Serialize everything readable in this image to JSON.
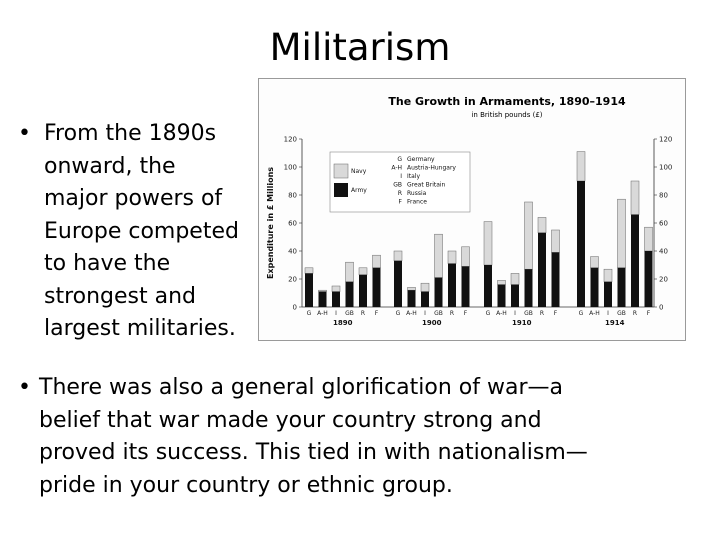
{
  "title": "Militarism",
  "bullets": [
    {
      "marker": "•",
      "lines": [
        "From the 1890s",
        "onward, the",
        "major powers of",
        "Europe competed",
        "to have the",
        "strongest and",
        "largest militaries."
      ]
    },
    {
      "marker": "•",
      "lines": [
        "There was also a general glorification of war—a",
        "belief that war made your country strong and",
        "proved its success. This tied in with nationalism—",
        "pride in your country or ethnic group."
      ]
    }
  ],
  "colors": {
    "army": "#111111",
    "navy": "#d9d9d9",
    "navy_stroke": "#666666",
    "axis": "#333333"
  },
  "chart_data": {
    "type": "bar",
    "stacked": true,
    "title": "The Growth in Armaments, 1890–1914",
    "subtitle": "in British pounds (£)",
    "ylabel": "Expenditure in £ Millions",
    "ylim": [
      0,
      120
    ],
    "yticks": [
      0,
      20,
      40,
      60,
      80,
      100,
      120
    ],
    "legend": {
      "series": [
        {
          "name": "Navy",
          "key": "navy"
        },
        {
          "name": "Army",
          "key": "army"
        }
      ],
      "countries": [
        {
          "code": "G",
          "name": "Germany"
        },
        {
          "code": "A-H",
          "name": "Austria-Hungary"
        },
        {
          "code": "I",
          "name": "Italy"
        },
        {
          "code": "GB",
          "name": "Great Britain"
        },
        {
          "code": "R",
          "name": "Russia"
        },
        {
          "code": "F",
          "name": "France"
        }
      ]
    },
    "groups": [
      {
        "year": "1890",
        "bars": [
          {
            "country": "G",
            "army": 24,
            "navy": 4
          },
          {
            "country": "A-H",
            "army": 11,
            "navy": 1
          },
          {
            "country": "I",
            "army": 11,
            "navy": 4
          },
          {
            "country": "GB",
            "army": 18,
            "navy": 14
          },
          {
            "country": "R",
            "army": 23,
            "navy": 5
          },
          {
            "country": "F",
            "army": 28,
            "navy": 9
          }
        ]
      },
      {
        "year": "1900",
        "bars": [
          {
            "country": "G",
            "army": 33,
            "navy": 7
          },
          {
            "country": "A-H",
            "army": 12,
            "navy": 2
          },
          {
            "country": "I",
            "army": 11,
            "navy": 6
          },
          {
            "country": "GB",
            "army": 21,
            "navy": 31
          },
          {
            "country": "R",
            "army": 31,
            "navy": 9
          },
          {
            "country": "F",
            "army": 29,
            "navy": 14
          }
        ]
      },
      {
        "year": "1910",
        "bars": [
          {
            "country": "G",
            "army": 30,
            "navy": 31
          },
          {
            "country": "A-H",
            "army": 16,
            "navy": 3
          },
          {
            "country": "I",
            "army": 16,
            "navy": 8
          },
          {
            "country": "GB",
            "army": 27,
            "navy": 48
          },
          {
            "country": "R",
            "army": 53,
            "navy": 11
          },
          {
            "country": "F",
            "army": 39,
            "navy": 16
          }
        ]
      },
      {
        "year": "1914",
        "bars": [
          {
            "country": "G",
            "army": 90,
            "navy": 21
          },
          {
            "country": "A-H",
            "army": 28,
            "navy": 8
          },
          {
            "country": "I",
            "army": 18,
            "navy": 9
          },
          {
            "country": "GB",
            "army": 28,
            "navy": 49
          },
          {
            "country": "R",
            "army": 66,
            "navy": 24
          },
          {
            "country": "F",
            "army": 40,
            "navy": 17
          }
        ]
      }
    ]
  }
}
